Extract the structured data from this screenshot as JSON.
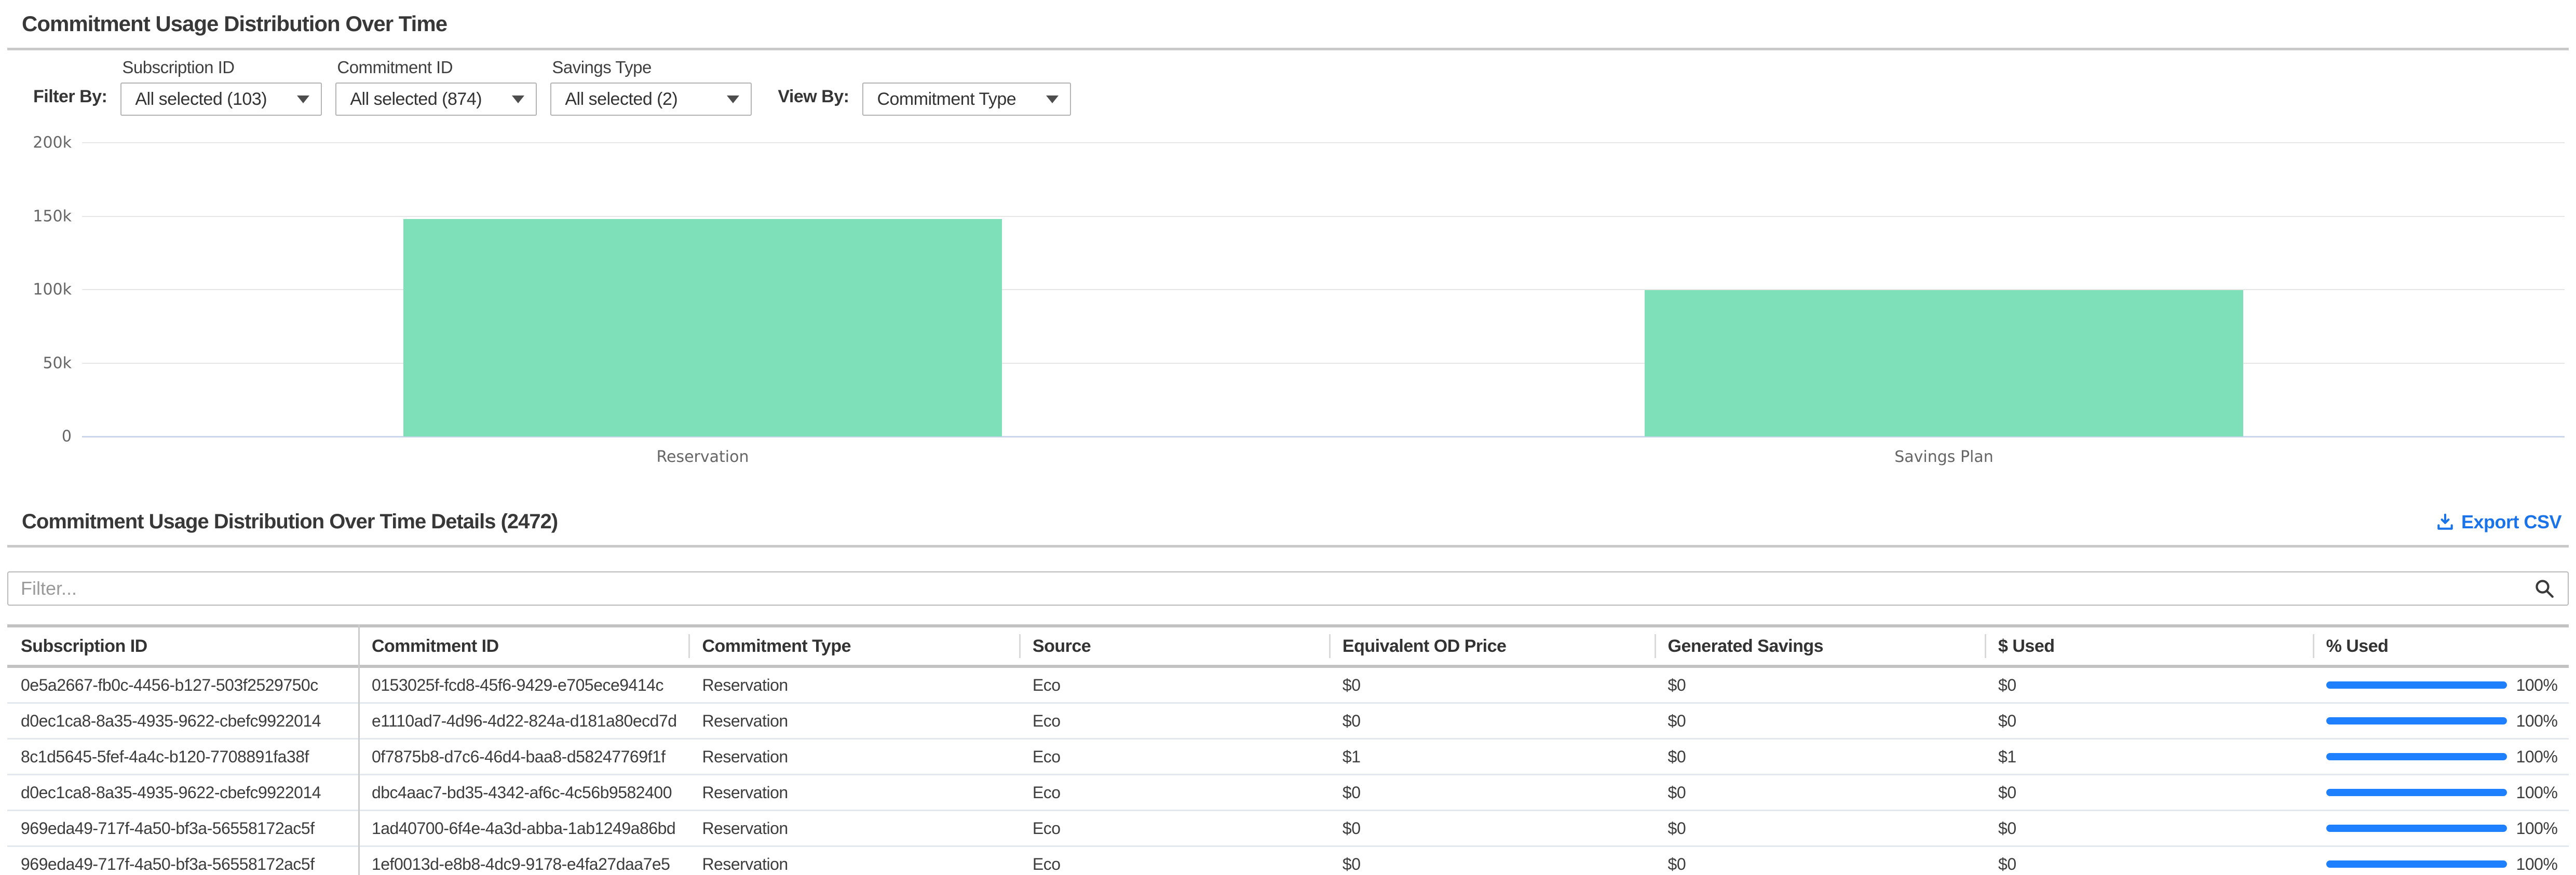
{
  "chart_section": {
    "title": "Commitment Usage Distribution Over Time",
    "filter_by_label": "Filter By:",
    "view_by_label": "View By:",
    "filters": [
      {
        "label": "Subscription ID",
        "value": "All selected (103)"
      },
      {
        "label": "Commitment ID",
        "value": "All selected (874)"
      },
      {
        "label": "Savings Type",
        "value": "All selected (2)"
      }
    ],
    "view_by_value": "Commitment Type"
  },
  "chart_data": {
    "type": "bar",
    "categories": [
      "Reservation",
      "Savings Plan"
    ],
    "values": [
      148000,
      99500
    ],
    "title": "Commitment Usage Distribution Over Time",
    "xlabel": "",
    "ylabel": "",
    "ylim": [
      0,
      200000
    ],
    "y_tick_labels": [
      "0",
      "50k",
      "100k",
      "150k",
      "200k"
    ],
    "grid": true,
    "legend": false,
    "bar_color": "#7de0b8",
    "axis_line_color": "#ccd6eb",
    "gridline_color": "#e6e6e6"
  },
  "details_section": {
    "title": "Commitment Usage Distribution Over Time Details (2472)",
    "export_label": "Export CSV",
    "filter_placeholder": "Filter...",
    "icons": {
      "export": "download-icon",
      "search": "search-icon",
      "dropdown": "caret-down-icon"
    },
    "table": {
      "columns": [
        "Subscription ID",
        "Commitment ID",
        "Commitment Type",
        "Source",
        "Equivalent OD Price",
        "Generated Savings",
        "$ Used",
        "% Used"
      ],
      "rows": [
        {
          "subscription_id": "0e5a2667-fb0c-4456-b127-503f2529750c",
          "commitment_id": "0153025f-fcd8-45f6-9429-e705ece9414c",
          "commitment_type": "Reservation",
          "source": "Eco",
          "equivalent_od_price": "$0",
          "generated_savings": "$0",
          "used": "$0",
          "pct_label": "100%",
          "pct_value": 100
        },
        {
          "subscription_id": "d0ec1ca8-8a35-4935-9622-cbefc9922014",
          "commitment_id": "e1110ad7-4d96-4d22-824a-d181a80ecd7d",
          "commitment_type": "Reservation",
          "source": "Eco",
          "equivalent_od_price": "$0",
          "generated_savings": "$0",
          "used": "$0",
          "pct_label": "100%",
          "pct_value": 100
        },
        {
          "subscription_id": "8c1d5645-5fef-4a4c-b120-7708891fa38f",
          "commitment_id": "0f7875b8-d7c6-46d4-baa8-d58247769f1f",
          "commitment_type": "Reservation",
          "source": "Eco",
          "equivalent_od_price": "$1",
          "generated_savings": "$0",
          "used": "$1",
          "pct_label": "100%",
          "pct_value": 100
        },
        {
          "subscription_id": "d0ec1ca8-8a35-4935-9622-cbefc9922014",
          "commitment_id": "dbc4aac7-bd35-4342-af6c-4c56b9582400",
          "commitment_type": "Reservation",
          "source": "Eco",
          "equivalent_od_price": "$0",
          "generated_savings": "$0",
          "used": "$0",
          "pct_label": "100%",
          "pct_value": 100
        },
        {
          "subscription_id": "969eda49-717f-4a50-bf3a-56558172ac5f",
          "commitment_id": "1ad40700-6f4e-4a3d-abba-1ab1249a86bd",
          "commitment_type": "Reservation",
          "source": "Eco",
          "equivalent_od_price": "$0",
          "generated_savings": "$0",
          "used": "$0",
          "pct_label": "100%",
          "pct_value": 100
        },
        {
          "subscription_id": "969eda49-717f-4a50-bf3a-56558172ac5f",
          "commitment_id": "1ef0013d-e8b8-4dc9-9178-e4fa27daa7e5",
          "commitment_type": "Reservation",
          "source": "Eco",
          "equivalent_od_price": "$0",
          "generated_savings": "$0",
          "used": "$0",
          "pct_label": "100%",
          "pct_value": 100
        }
      ]
    }
  },
  "colors": {
    "progress_blue": "#1e80ff",
    "link_blue": "#1a73e8",
    "bar_green": "#7de0b8"
  }
}
